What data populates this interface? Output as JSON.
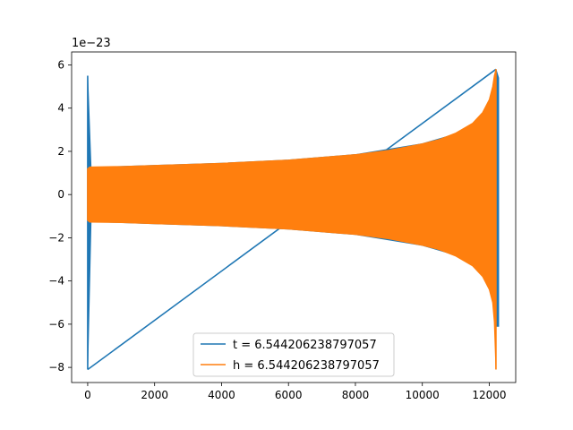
{
  "chart_data": {
    "type": "line",
    "title": "",
    "xlabel": "",
    "ylabel": "",
    "offset_text": "1e−23",
    "xlim": [
      -480,
      12790
    ],
    "ylim": [
      -8.7,
      6.6
    ],
    "xticks": [
      0,
      2000,
      4000,
      6000,
      8000,
      10000,
      12000
    ],
    "xtick_labels": [
      "0",
      "2000",
      "4000",
      "6000",
      "8000",
      "10000",
      "12000"
    ],
    "yticks": [
      -8,
      -6,
      -4,
      -2,
      0,
      2,
      4,
      6
    ],
    "ytick_labels": [
      "−8",
      "−6",
      "−4",
      "−2",
      "0",
      "2",
      "4",
      "6"
    ],
    "grid": false,
    "legend_position": "lower center",
    "series": [
      {
        "name": "t = 6.544206238797057",
        "color": "#1f77b4",
        "envelope": {
          "x": [
            0,
            100,
            2000,
            4000,
            6000,
            8000,
            10000,
            11000,
            11500,
            11800,
            12000,
            12100,
            12200,
            12280
          ],
          "upper": [
            5.5,
            1.25,
            1.35,
            1.45,
            1.6,
            1.85,
            2.35,
            2.8,
            3.2,
            3.6,
            4.2,
            4.8,
            5.8,
            5.4
          ],
          "lower": [
            -8.1,
            -1.25,
            -1.35,
            -1.45,
            -1.6,
            -1.85,
            -2.35,
            -2.8,
            -3.2,
            -3.6,
            -4.2,
            -4.8,
            -6.1,
            -6.1
          ]
        }
      },
      {
        "name": "h = 6.544206238797057",
        "color": "#ff7f0e",
        "envelope": {
          "x": [
            0,
            60,
            1000,
            2000,
            4000,
            6000,
            8000,
            9000,
            10000,
            10500,
            11000,
            11500,
            11800,
            12000,
            12100,
            12150,
            12200
          ],
          "upper": [
            1.2,
            1.28,
            1.3,
            1.35,
            1.45,
            1.6,
            1.85,
            2.05,
            2.35,
            2.55,
            2.85,
            3.3,
            3.8,
            4.4,
            5.0,
            5.5,
            5.8
          ],
          "lower": [
            -1.2,
            -1.28,
            -1.3,
            -1.35,
            -1.45,
            -1.6,
            -1.85,
            -2.05,
            -2.35,
            -2.55,
            -2.85,
            -3.3,
            -3.8,
            -4.4,
            -5.0,
            -5.9,
            -8.1
          ]
        }
      }
    ]
  }
}
